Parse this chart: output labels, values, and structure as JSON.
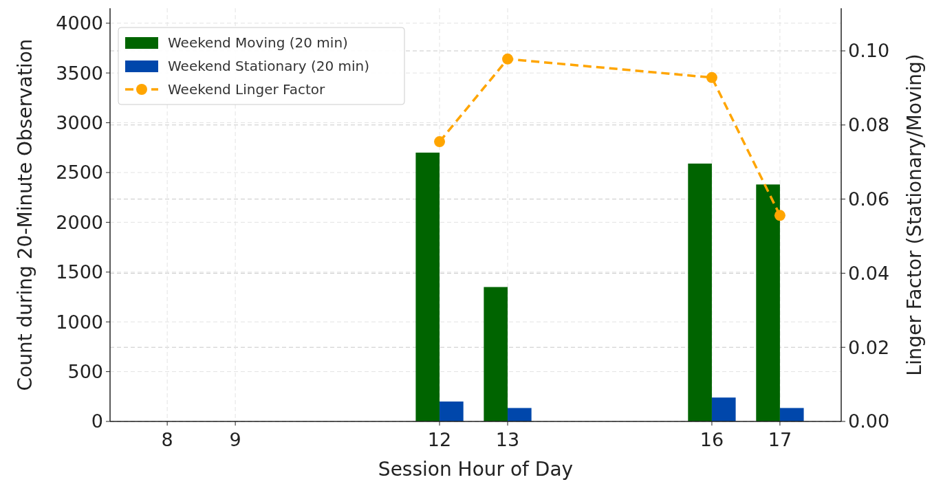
{
  "chart_data": {
    "type": "bar",
    "xlabel": "Session Hour of Day",
    "ylabel": "Count during 20-Minute Observation",
    "y2label": "Linger Factor (Stationary/Moving)",
    "x": [
      12,
      13,
      16,
      17
    ],
    "xlim": [
      7.16,
      17.9
    ],
    "xticks": [
      8,
      9,
      12,
      13,
      16,
      17
    ],
    "ylim": [
      0,
      4150
    ],
    "yticks": [
      0,
      500,
      1000,
      1500,
      2000,
      2500,
      3000,
      3500,
      4000
    ],
    "y2lim": [
      0,
      0.1115
    ],
    "y2ticks": [
      {
        "value": 0,
        "label": "0.00"
      },
      {
        "value": 0.02,
        "label": "0.02"
      },
      {
        "value": 0.04,
        "label": "0.04"
      },
      {
        "value": 0.06,
        "label": "0.06"
      },
      {
        "value": 0.08,
        "label": "0.08"
      },
      {
        "value": 0.1,
        "label": "0.10"
      }
    ],
    "series": [
      {
        "name": "Weekend Moving (20 min)",
        "color": "#006400",
        "values": [
          2700,
          1350,
          2590,
          2380
        ]
      },
      {
        "name": "Weekend Stationary (20 min)",
        "color": "#0047ab",
        "values": [
          200,
          135,
          240,
          135
        ]
      },
      {
        "name": "Weekend Linger Factor",
        "type": "line",
        "axis": "y2",
        "color": "#ffa500",
        "x": [
          12,
          13,
          16,
          17
        ],
        "values": [
          0.0755,
          0.0978,
          0.0928,
          0.0556
        ],
        "marker": "circle",
        "line_style": "dashed"
      }
    ],
    "grid": true,
    "legend": "top left"
  }
}
